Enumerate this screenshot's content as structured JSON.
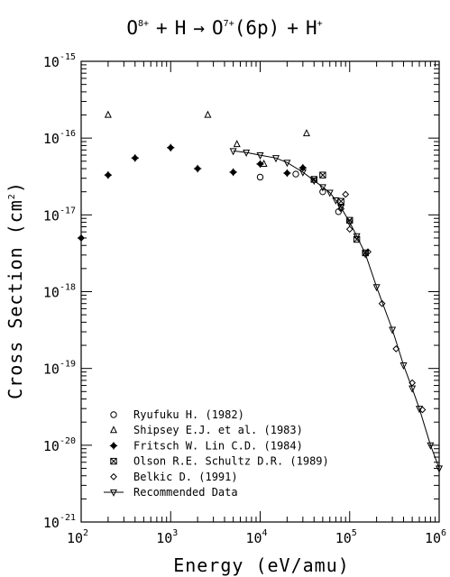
{
  "chart_data": {
    "type": "scatter",
    "title": {
      "ion": "O",
      "ion_charge": "8+",
      "plus1": "+",
      "target": "H",
      "arrow": "→",
      "product": "O",
      "product_charge": "7+",
      "state": "(6p)",
      "plus2": "+",
      "proton": "H",
      "proton_charge": "+"
    },
    "xlabel": "Energy (eV/amu)",
    "ylabel": {
      "main": "Cross Section (cm",
      "exp": "2",
      "close": ")"
    },
    "xscale": "log",
    "yscale": "log",
    "xlim": [
      100,
      1000000
    ],
    "ylim": [
      1e-21,
      1e-15
    ],
    "x_ticks": [
      {
        "base": "10",
        "exp": "2",
        "value": 100
      },
      {
        "base": "10",
        "exp": "3",
        "value": 1000
      },
      {
        "base": "10",
        "exp": "4",
        "value": 10000
      },
      {
        "base": "10",
        "exp": "5",
        "value": 100000
      },
      {
        "base": "10",
        "exp": "6",
        "value": 1000000
      }
    ],
    "y_ticks": [
      {
        "base": "10",
        "exp": "-15",
        "value": 1e-15
      },
      {
        "base": "10",
        "exp": "-16",
        "value": 1e-16
      },
      {
        "base": "10",
        "exp": "-17",
        "value": 1e-17
      },
      {
        "base": "10",
        "exp": "-18",
        "value": 1e-18
      },
      {
        "base": "10",
        "exp": "-19",
        "value": 1e-19
      },
      {
        "base": "10",
        "exp": "-20",
        "value": 1e-20
      },
      {
        "base": "10",
        "exp": "-21",
        "value": 1e-21
      }
    ],
    "legend_position": "bottom-left",
    "series": [
      {
        "name": "Ryufuku H. (1982)",
        "marker": "circle",
        "points": [
          [
            10000,
            3.1e-17
          ],
          [
            25000,
            3.4e-17
          ],
          [
            50000,
            2e-17
          ],
          [
            75000,
            1.1e-17
          ]
        ]
      },
      {
        "name": "Shipsey E.J. et al. (1983)",
        "marker": "triangle",
        "points": [
          [
            200,
            2e-16
          ],
          [
            2600,
            2e-16
          ],
          [
            5500,
            8.3e-17
          ],
          [
            11000,
            4.6e-17
          ],
          [
            33000,
            1.15e-16
          ]
        ]
      },
      {
        "name": "Fritsch W. Lin C.D. (1984)",
        "marker": "plus-diamond",
        "points": [
          [
            100,
            5e-18
          ],
          [
            200,
            3.3e-17
          ],
          [
            400,
            5.5e-17
          ],
          [
            1000,
            7.5e-17
          ],
          [
            2000,
            4e-17
          ],
          [
            5000,
            3.6e-17
          ],
          [
            10000,
            4.6e-17
          ],
          [
            20000,
            3.5e-17
          ],
          [
            30000,
            4.1e-17
          ]
        ]
      },
      {
        "name": "Olson R.E. Schultz D.R. (1989)",
        "marker": "cross-square",
        "points": [
          [
            40000,
            2.9e-17
          ],
          [
            50000,
            3.3e-17
          ],
          [
            80000,
            1.5e-17
          ],
          [
            100000,
            8.5e-18
          ],
          [
            120000,
            4.8e-18
          ],
          [
            150000,
            3.2e-18
          ]
        ]
      },
      {
        "name": "Belkic D. (1991)",
        "marker": "diamond",
        "points": [
          [
            80000,
            1.2e-17
          ],
          [
            90000,
            1.85e-17
          ],
          [
            100000,
            6.5e-18
          ],
          [
            160000,
            3.3e-18
          ],
          [
            230000,
            7e-19
          ],
          [
            330000,
            1.8e-19
          ],
          [
            500000,
            6.5e-20
          ],
          [
            650000,
            2.9e-20
          ]
        ]
      },
      {
        "name": "Recommended Data",
        "marker": "inverted-triangle-line",
        "points": [
          [
            5000,
            6.8e-17
          ],
          [
            7000,
            6.5e-17
          ],
          [
            10000,
            6e-17
          ],
          [
            15000,
            5.5e-17
          ],
          [
            20000,
            4.8e-17
          ],
          [
            30000,
            3.6e-17
          ],
          [
            40000,
            2.8e-17
          ],
          [
            50000,
            2.3e-17
          ],
          [
            60000,
            1.95e-17
          ],
          [
            70000,
            1.55e-17
          ],
          [
            80000,
            1.25e-17
          ],
          [
            100000,
            8e-18
          ],
          [
            120000,
            5.3e-18
          ],
          [
            150000,
            3.1e-18
          ],
          [
            200000,
            1.15e-18
          ],
          [
            300000,
            3.2e-19
          ],
          [
            400000,
            1.1e-19
          ],
          [
            500000,
            5.5e-20
          ],
          [
            600000,
            3e-20
          ],
          [
            800000,
            1e-20
          ],
          [
            1000000,
            5e-21
          ]
        ]
      }
    ]
  }
}
